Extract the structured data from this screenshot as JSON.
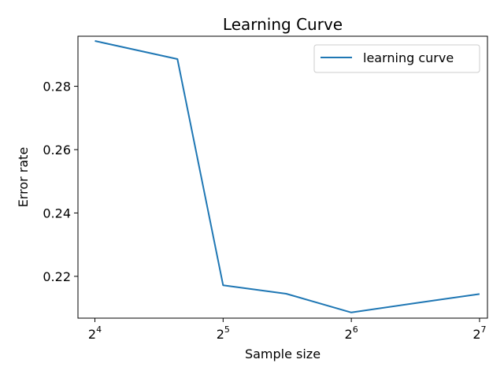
{
  "chart_data": {
    "type": "line",
    "title": "Learning Curve",
    "xlabel": "Sample size",
    "ylabel": "Error rate",
    "x_scale": "log2",
    "xlim": [
      14.6,
      133.6
    ],
    "ylim": [
      0.2068,
      0.2958
    ],
    "x_ticks": [
      {
        "value": 16,
        "base": "2",
        "exp": "4"
      },
      {
        "value": 32,
        "base": "2",
        "exp": "5"
      },
      {
        "value": 64,
        "base": "2",
        "exp": "6"
      },
      {
        "value": 128,
        "base": "2",
        "exp": "7"
      }
    ],
    "y_ticks": [
      {
        "value": 0.22,
        "label": "0.22"
      },
      {
        "value": 0.24,
        "label": "0.24"
      },
      {
        "value": 0.26,
        "label": "0.26"
      },
      {
        "value": 0.28,
        "label": "0.28"
      }
    ],
    "series": [
      {
        "name": "learning curve",
        "color": "#1f77b4",
        "x": [
          16,
          25,
          32,
          45,
          64,
          91,
          128
        ],
        "y": [
          0.2943,
          0.2886,
          0.2172,
          0.2145,
          0.2086,
          0.2116,
          0.2144
        ]
      }
    ],
    "legend": {
      "position": "top-right"
    },
    "grid": false
  }
}
